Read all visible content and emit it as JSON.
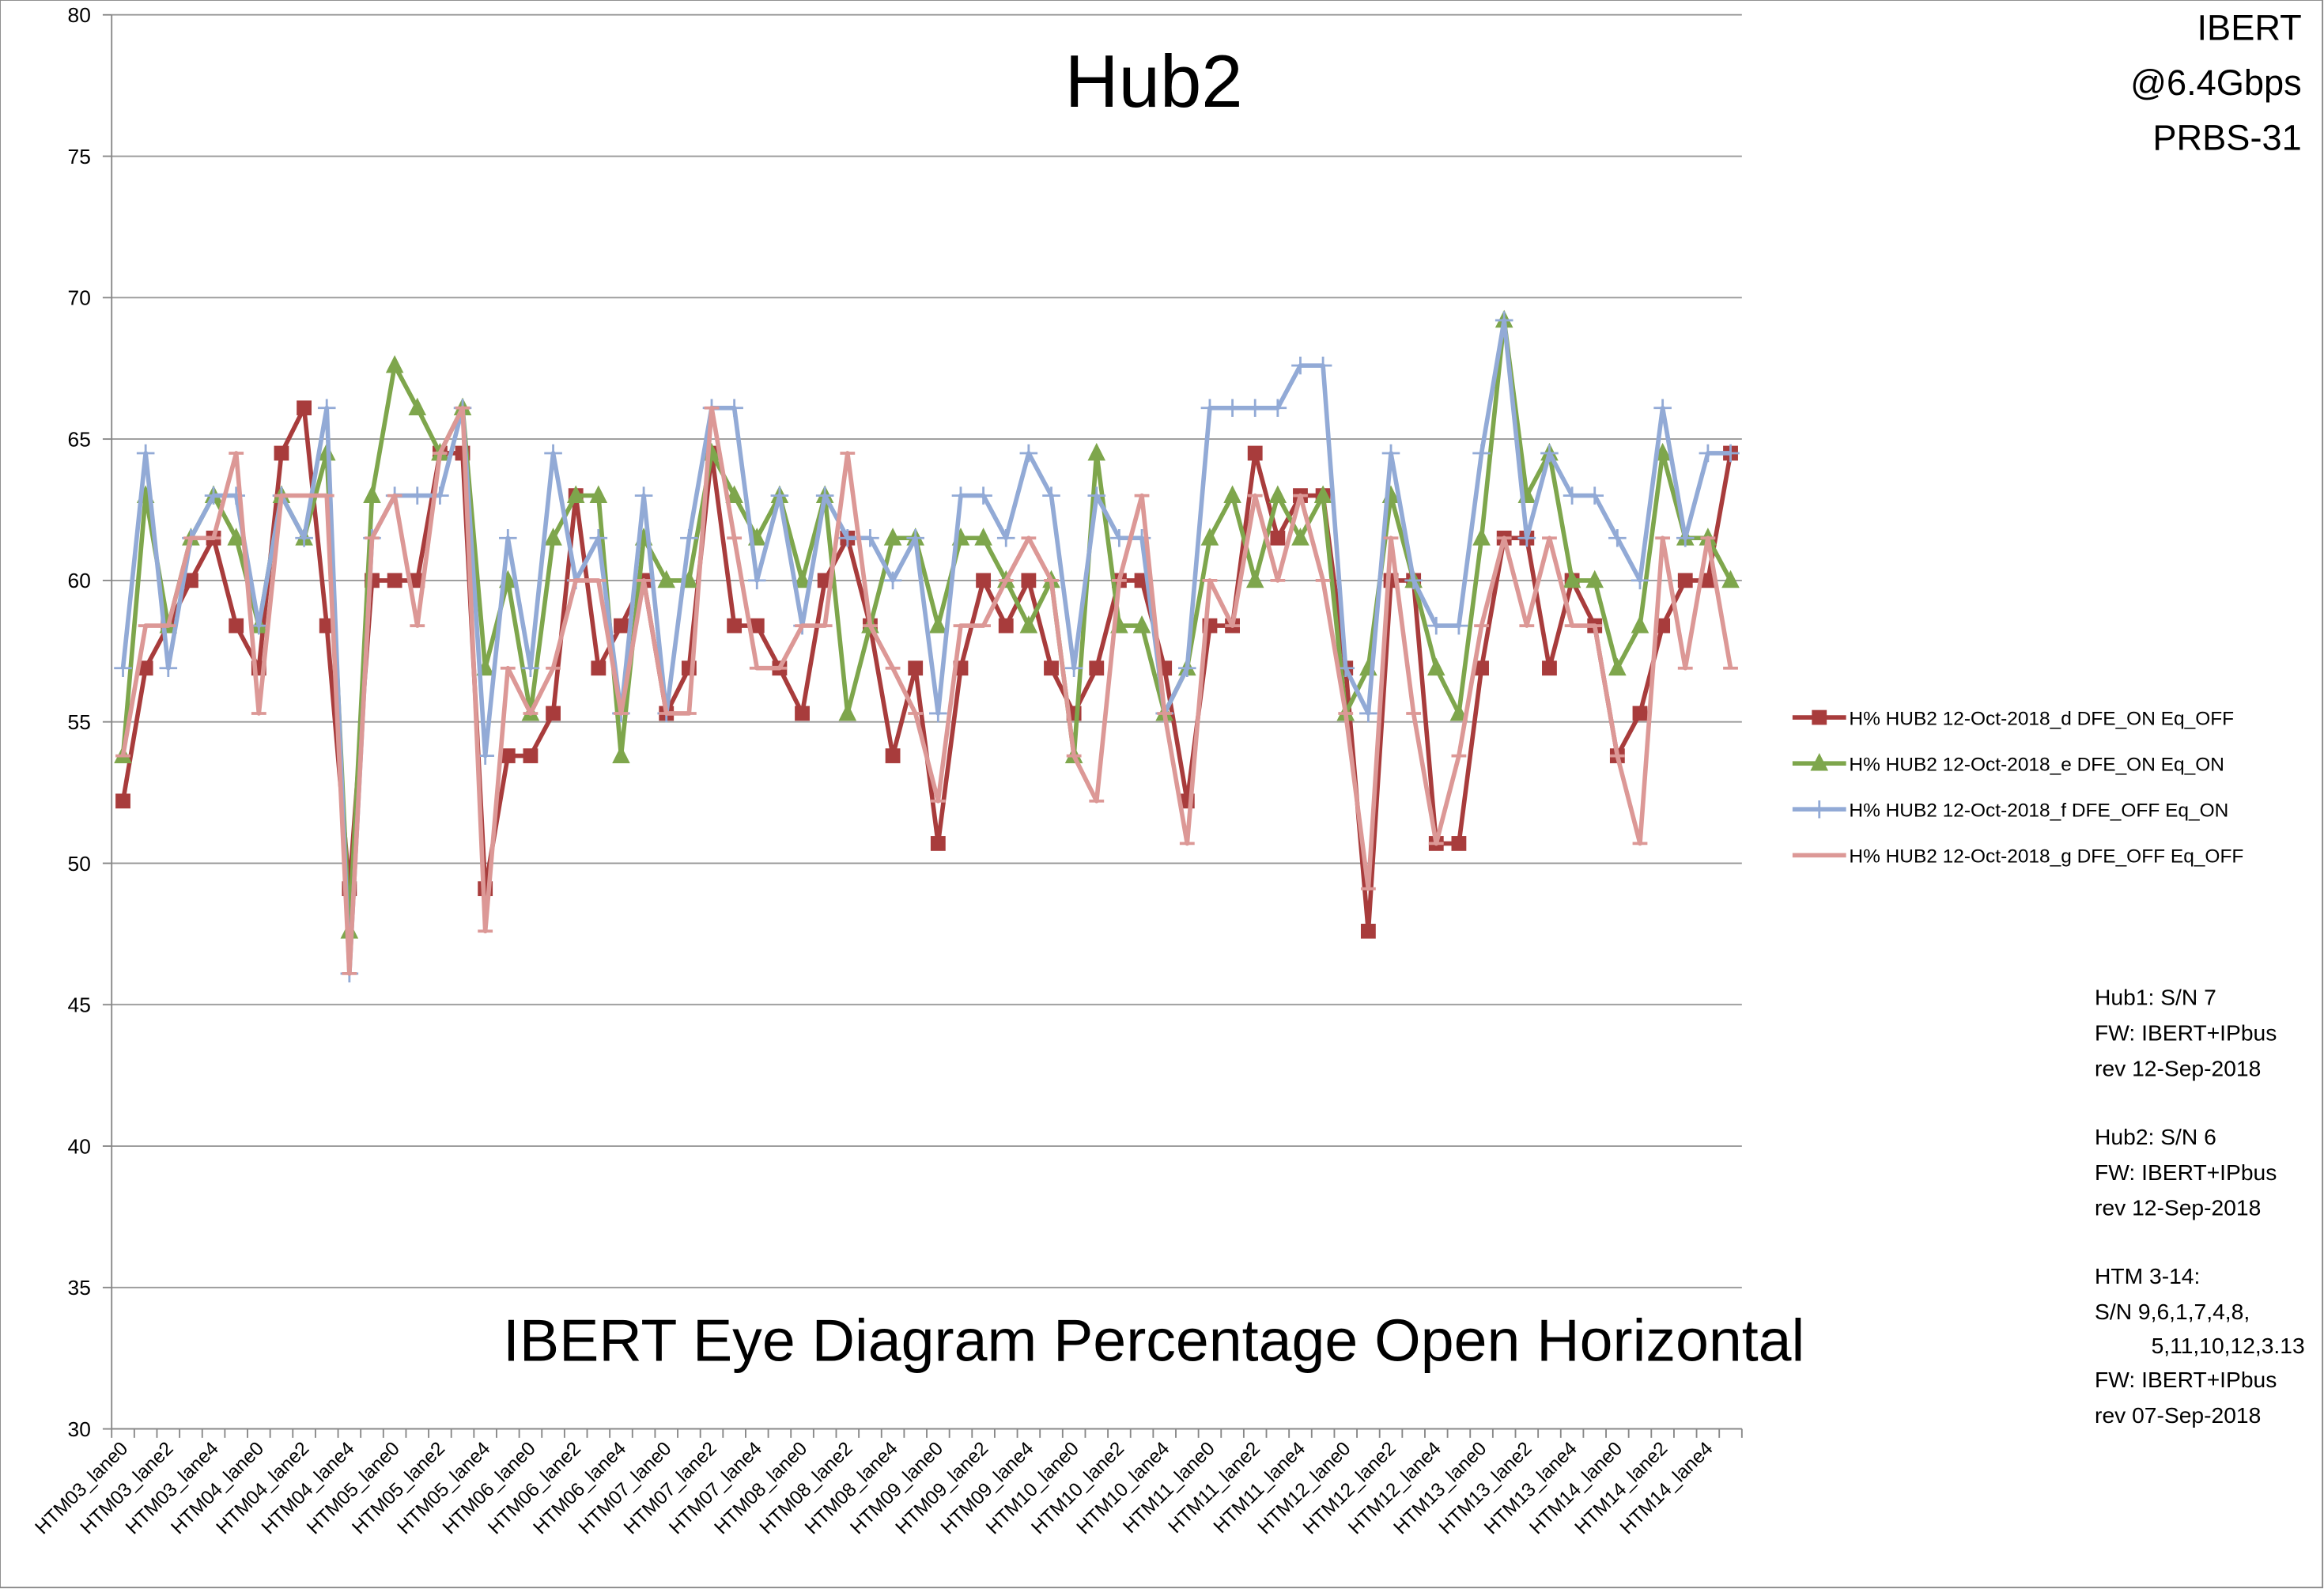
{
  "chart_data": {
    "type": "line",
    "title": "Hub2",
    "annotation": "IBERT Eye Diagram Percentage Open Horizontal",
    "corner_text": [
      "IBERT",
      "@6.4Gbps",
      "PRBS-31"
    ],
    "notes": [
      "Hub1:  S/N 7",
      "FW: IBERT+IPbus",
      "rev  12-Sep-2018",
      "Hub2:  S/N 6",
      "FW: IBERT+IPbus",
      "rev  12-Sep-2018",
      "HTM 3-14:",
      "S/N  9,6,1,7,4,8,",
      "5,11,10,12,3.13",
      "FW: IBERT+IPbus",
      "rev  07-Sep-2018"
    ],
    "categories": [
      "HTM03_lane0",
      null,
      "HTM03_lane2",
      null,
      "HTM03_lane4",
      null,
      "HTM04_lane0",
      null,
      "HTM04_lane2",
      null,
      "HTM04_lane4",
      null,
      "HTM05_lane0",
      null,
      "HTM05_lane2",
      null,
      "HTM05_lane4",
      null,
      "HTM06_lane0",
      null,
      "HTM06_lane2",
      null,
      "HTM06_lane4",
      null,
      "HTM07_lane0",
      null,
      "HTM07_lane2",
      null,
      "HTM07_lane4",
      null,
      "HTM08_lane0",
      null,
      "HTM08_lane2",
      null,
      "HTM08_lane4",
      null,
      "HTM09_lane0",
      null,
      "HTM09_lane2",
      null,
      "HTM09_lane4",
      null,
      "HTM10_lane0",
      null,
      "HTM10_lane2",
      null,
      "HTM10_lane4",
      null,
      "HTM11_lane0",
      null,
      "HTM11_lane2",
      null,
      "HTM11_lane4",
      null,
      "HTM12_lane0",
      null,
      "HTM12_lane2",
      null,
      "HTM12_lane4",
      null,
      "HTM13_lane0",
      null,
      "HTM13_lane2",
      null,
      "HTM13_lane4",
      null,
      "HTM14_lane0",
      null,
      "HTM14_lane2",
      null,
      "HTM14_lane4",
      null
    ],
    "series": [
      {
        "name": "H% HUB2  12-Oct-2018_d DFE_ON Eq_OFF",
        "color": "#a83c3c",
        "marker": "square",
        "values": [
          52.2,
          56.9,
          58.4,
          60,
          61.5,
          58.4,
          56.9,
          64.5,
          66.1,
          58.4,
          49.1,
          60,
          60,
          60,
          64.5,
          64.5,
          49.1,
          53.8,
          53.8,
          55.3,
          63,
          56.9,
          58.4,
          60,
          55.3,
          56.9,
          64.5,
          58.4,
          58.4,
          56.9,
          55.3,
          60,
          61.5,
          58.4,
          53.8,
          56.9,
          50.7,
          56.9,
          60,
          58.4,
          60,
          56.9,
          55.3,
          56.9,
          60,
          60,
          56.9,
          52.2,
          58.4,
          58.4,
          64.5,
          61.5,
          63,
          63,
          56.9,
          47.6,
          60,
          60,
          50.7,
          50.7,
          56.9,
          61.5,
          61.5,
          56.9,
          60,
          58.4,
          53.8,
          55.3,
          58.4,
          60,
          60,
          64.5
        ]
      },
      {
        "name": "H% HUB2  12-Oct-2018_e DFE_ON Eq_ON",
        "color": "#7ea64c",
        "marker": "triangle",
        "values": [
          53.8,
          63,
          58.4,
          61.5,
          63,
          61.5,
          58.4,
          63,
          61.5,
          64.5,
          47.6,
          63,
          67.6,
          66.1,
          64.5,
          66.1,
          56.9,
          60,
          55.3,
          61.5,
          63,
          63,
          53.8,
          61.5,
          60,
          60,
          64.5,
          63,
          61.5,
          63,
          60,
          63,
          55.3,
          58.4,
          61.5,
          61.5,
          58.4,
          61.5,
          61.5,
          60,
          58.4,
          60,
          53.8,
          64.5,
          58.4,
          58.4,
          55.3,
          56.9,
          61.5,
          63,
          60,
          63,
          61.5,
          63,
          55.3,
          56.9,
          63,
          60,
          56.9,
          55.3,
          61.5,
          69.2,
          63,
          64.5,
          60,
          60,
          56.9,
          58.4,
          64.5,
          61.5,
          61.5,
          60
        ]
      },
      {
        "name": "H% HUB2  12-Oct-2018_f DFE_OFF Eq_ON",
        "color": "#92aad6",
        "marker": "plus",
        "values": [
          56.9,
          64.5,
          56.9,
          61.5,
          63,
          63,
          58.4,
          63,
          61.5,
          66.1,
          46.1,
          61.5,
          63,
          63,
          63,
          66.1,
          53.8,
          61.5,
          56.9,
          64.5,
          60,
          61.5,
          55.3,
          63,
          55.3,
          61.5,
          66.1,
          66.1,
          60,
          63,
          58.4,
          63,
          61.5,
          61.5,
          60,
          61.5,
          55.3,
          63,
          63,
          61.5,
          64.5,
          63,
          56.9,
          63,
          61.5,
          61.5,
          55.3,
          56.9,
          66.1,
          66.1,
          66.1,
          66.1,
          67.6,
          67.6,
          56.9,
          55.3,
          64.5,
          60,
          58.4,
          58.4,
          64.5,
          69.2,
          61.5,
          64.5,
          63,
          63,
          61.5,
          60,
          66.1,
          61.5,
          64.5,
          64.5
        ]
      },
      {
        "name": "H% HUB2  12-Oct-2018_g DFE_OFF Eq_OFF",
        "color": "#dc9896",
        "marker": "dash",
        "values": [
          53.8,
          58.4,
          58.4,
          61.5,
          61.5,
          64.5,
          55.3,
          63,
          63,
          63,
          46.1,
          61.5,
          63,
          58.4,
          64.5,
          66.1,
          47.6,
          56.9,
          55.3,
          56.9,
          60,
          60,
          55.3,
          60,
          55.3,
          55.3,
          66.1,
          61.5,
          56.9,
          56.9,
          58.4,
          58.4,
          64.5,
          58.4,
          56.9,
          55.3,
          52.2,
          58.4,
          58.4,
          60,
          61.5,
          60,
          53.8,
          52.2,
          60,
          63,
          55.3,
          50.7,
          60,
          58.4,
          63,
          60,
          63,
          60,
          55.3,
          49.1,
          61.5,
          55.3,
          50.7,
          53.8,
          58.4,
          61.5,
          58.4,
          61.5,
          58.4,
          58.4,
          53.8,
          50.7,
          61.5,
          56.9,
          61.5,
          56.9
        ]
      }
    ],
    "ylim": [
      30,
      80
    ],
    "yticks": [
      30,
      35,
      40,
      45,
      50,
      55,
      60,
      65,
      70,
      75,
      80
    ],
    "grid": true,
    "legend": "right"
  }
}
